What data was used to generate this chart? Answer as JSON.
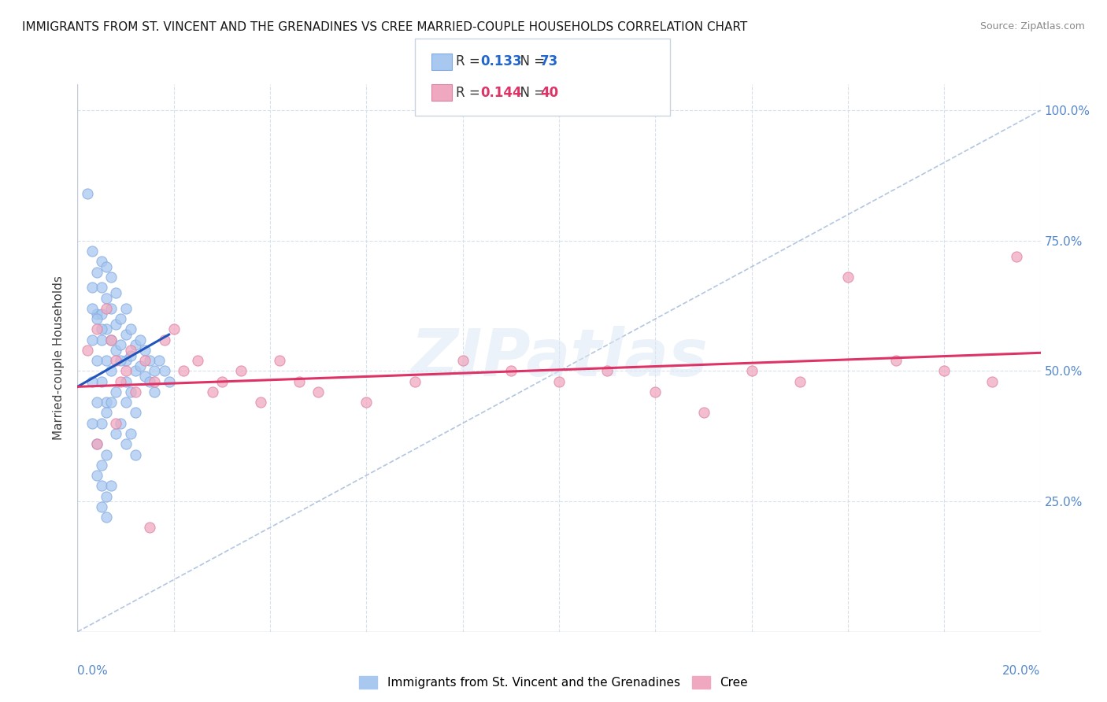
{
  "title": "IMMIGRANTS FROM ST. VINCENT AND THE GRENADINES VS CREE MARRIED-COUPLE HOUSEHOLDS CORRELATION CHART",
  "source": "Source: ZipAtlas.com",
  "ylabel": "Married-couple Households",
  "R1": 0.133,
  "N1": 73,
  "R2": 0.144,
  "N2": 40,
  "color_blue": "#a8c8f0",
  "color_blue_edge": "#80a8e0",
  "color_pink": "#f0a8c0",
  "color_pink_edge": "#e080a0",
  "trendline_blue": "#2255bb",
  "trendline_pink": "#dd3366",
  "ref_line_color": "#a0b8d8",
  "watermark": "ZIPatlas",
  "legend1_label": "Immigrants from St. Vincent and the Grenadines",
  "legend2_label": "Cree",
  "blue_x": [
    0.002,
    0.003,
    0.003,
    0.004,
    0.004,
    0.005,
    0.005,
    0.005,
    0.005,
    0.006,
    0.006,
    0.006,
    0.006,
    0.007,
    0.007,
    0.007,
    0.008,
    0.008,
    0.008,
    0.009,
    0.009,
    0.01,
    0.01,
    0.01,
    0.01,
    0.011,
    0.011,
    0.012,
    0.012,
    0.013,
    0.013,
    0.014,
    0.014,
    0.015,
    0.015,
    0.016,
    0.016,
    0.017,
    0.018,
    0.019,
    0.003,
    0.004,
    0.005,
    0.006,
    0.007,
    0.008,
    0.009,
    0.01,
    0.011,
    0.012,
    0.003,
    0.004,
    0.005,
    0.006,
    0.007,
    0.008,
    0.009,
    0.01,
    0.011,
    0.012,
    0.003,
    0.004,
    0.005,
    0.006,
    0.004,
    0.005,
    0.006,
    0.007,
    0.005,
    0.006,
    0.004,
    0.005,
    0.003
  ],
  "blue_y": [
    0.84,
    0.73,
    0.66,
    0.69,
    0.61,
    0.71,
    0.66,
    0.61,
    0.56,
    0.7,
    0.64,
    0.58,
    0.52,
    0.68,
    0.62,
    0.56,
    0.65,
    0.59,
    0.54,
    0.6,
    0.55,
    0.62,
    0.57,
    0.52,
    0.48,
    0.58,
    0.53,
    0.55,
    0.5,
    0.56,
    0.51,
    0.54,
    0.49,
    0.52,
    0.48,
    0.5,
    0.46,
    0.52,
    0.5,
    0.48,
    0.56,
    0.52,
    0.48,
    0.44,
    0.5,
    0.46,
    0.52,
    0.44,
    0.46,
    0.42,
    0.48,
    0.44,
    0.4,
    0.42,
    0.44,
    0.38,
    0.4,
    0.36,
    0.38,
    0.34,
    0.4,
    0.36,
    0.32,
    0.34,
    0.3,
    0.28,
    0.26,
    0.28,
    0.24,
    0.22,
    0.6,
    0.58,
    0.62
  ],
  "pink_x": [
    0.002,
    0.004,
    0.006,
    0.007,
    0.008,
    0.009,
    0.01,
    0.011,
    0.012,
    0.014,
    0.016,
    0.018,
    0.02,
    0.022,
    0.025,
    0.028,
    0.03,
    0.034,
    0.038,
    0.042,
    0.046,
    0.05,
    0.06,
    0.07,
    0.08,
    0.09,
    0.1,
    0.11,
    0.12,
    0.13,
    0.14,
    0.15,
    0.16,
    0.17,
    0.18,
    0.19,
    0.195,
    0.004,
    0.008,
    0.015
  ],
  "pink_y": [
    0.54,
    0.58,
    0.62,
    0.56,
    0.52,
    0.48,
    0.5,
    0.54,
    0.46,
    0.52,
    0.48,
    0.56,
    0.58,
    0.5,
    0.52,
    0.46,
    0.48,
    0.5,
    0.44,
    0.52,
    0.48,
    0.46,
    0.44,
    0.48,
    0.52,
    0.5,
    0.48,
    0.5,
    0.46,
    0.42,
    0.5,
    0.48,
    0.68,
    0.52,
    0.5,
    0.48,
    0.72,
    0.36,
    0.4,
    0.2
  ],
  "blue_trend_x0": 0.0,
  "blue_trend_y0": 0.47,
  "blue_trend_x1": 0.019,
  "blue_trend_y1": 0.57,
  "pink_trend_x0": 0.0,
  "pink_trend_y0": 0.47,
  "pink_trend_x1": 0.2,
  "pink_trend_y1": 0.535,
  "xmin": 0.0,
  "xmax": 0.2,
  "ymin": 0.0,
  "ymax": 1.05,
  "yticks": [
    0.25,
    0.5,
    0.75,
    1.0
  ],
  "ytick_labels": [
    "25.0%",
    "50.0%",
    "75.0%",
    "100.0%"
  ],
  "xtick_left_label": "0.0%",
  "xtick_right_label": "20.0%",
  "grid_color": "#d8e0ec",
  "border_color": "#c0ccd8",
  "bg_color": "#ffffff",
  "title_fontsize": 11,
  "axis_label_fontsize": 11,
  "tick_label_fontsize": 11,
  "legend_fontsize": 11,
  "marker_size": 90,
  "marker_alpha": 0.75
}
